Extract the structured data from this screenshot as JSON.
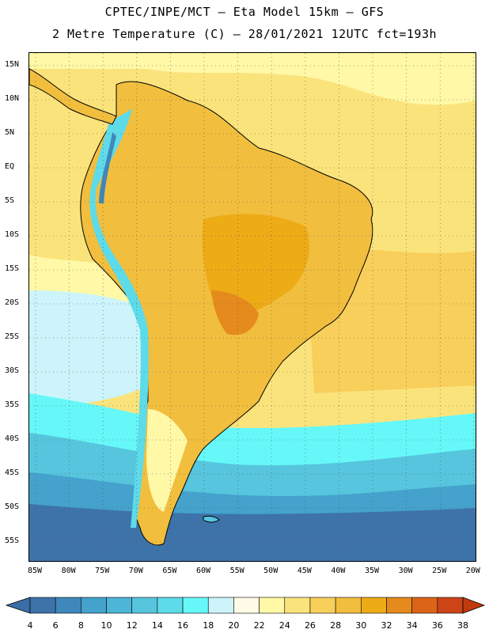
{
  "header": {
    "title_line1": "CPTEC/INPE/MCT –  Eta Model 15km – GFS",
    "title_line2": "2 Metre Temperature (C) – 28/01/2021 12UTC fct=193h"
  },
  "axes": {
    "lat_labels": [
      "15N",
      "10N",
      "5N",
      "EQ",
      "5S",
      "10S",
      "15S",
      "20S",
      "25S",
      "30S",
      "35S",
      "40S",
      "45S",
      "50S",
      "55S"
    ],
    "lon_labels": [
      "85W",
      "80W",
      "75W",
      "70W",
      "65W",
      "60W",
      "55W",
      "50W",
      "45W",
      "40W",
      "35W",
      "30W",
      "25W",
      "20W"
    ]
  },
  "colorbar": {
    "ticks": [
      "4",
      "6",
      "8",
      "10",
      "12",
      "14",
      "16",
      "18",
      "20",
      "22",
      "24",
      "26",
      "28",
      "30",
      "32",
      "34",
      "36",
      "38"
    ],
    "colors": [
      "#3e73aa",
      "#3f88bb",
      "#44a2cc",
      "#4db5d6",
      "#56c5dd",
      "#5ddbe9",
      "#66f8f8",
      "#ccf4fa",
      "#fffbe6",
      "#fff8a6",
      "#fbe37c",
      "#f7cf5a",
      "#f1be3e",
      "#edab16",
      "#e58a1c",
      "#dc6418",
      "#cc4418"
    ],
    "end_low_color": "#3b6ea8",
    "end_high_color": "#c0390f"
  },
  "chart_data": {
    "type": "heatmap",
    "title": "2 Metre Temperature (C) – 28/01/2021 12UTC fct=193h",
    "model": "Eta Model 15km – GFS",
    "source": "CPTEC/INPE/MCT",
    "variable": "2 Metre Temperature",
    "units": "C",
    "xlim": [
      -85,
      -20
    ],
    "ylim": [
      -57,
      17
    ],
    "scale_min": 4,
    "scale_max": 38
  }
}
